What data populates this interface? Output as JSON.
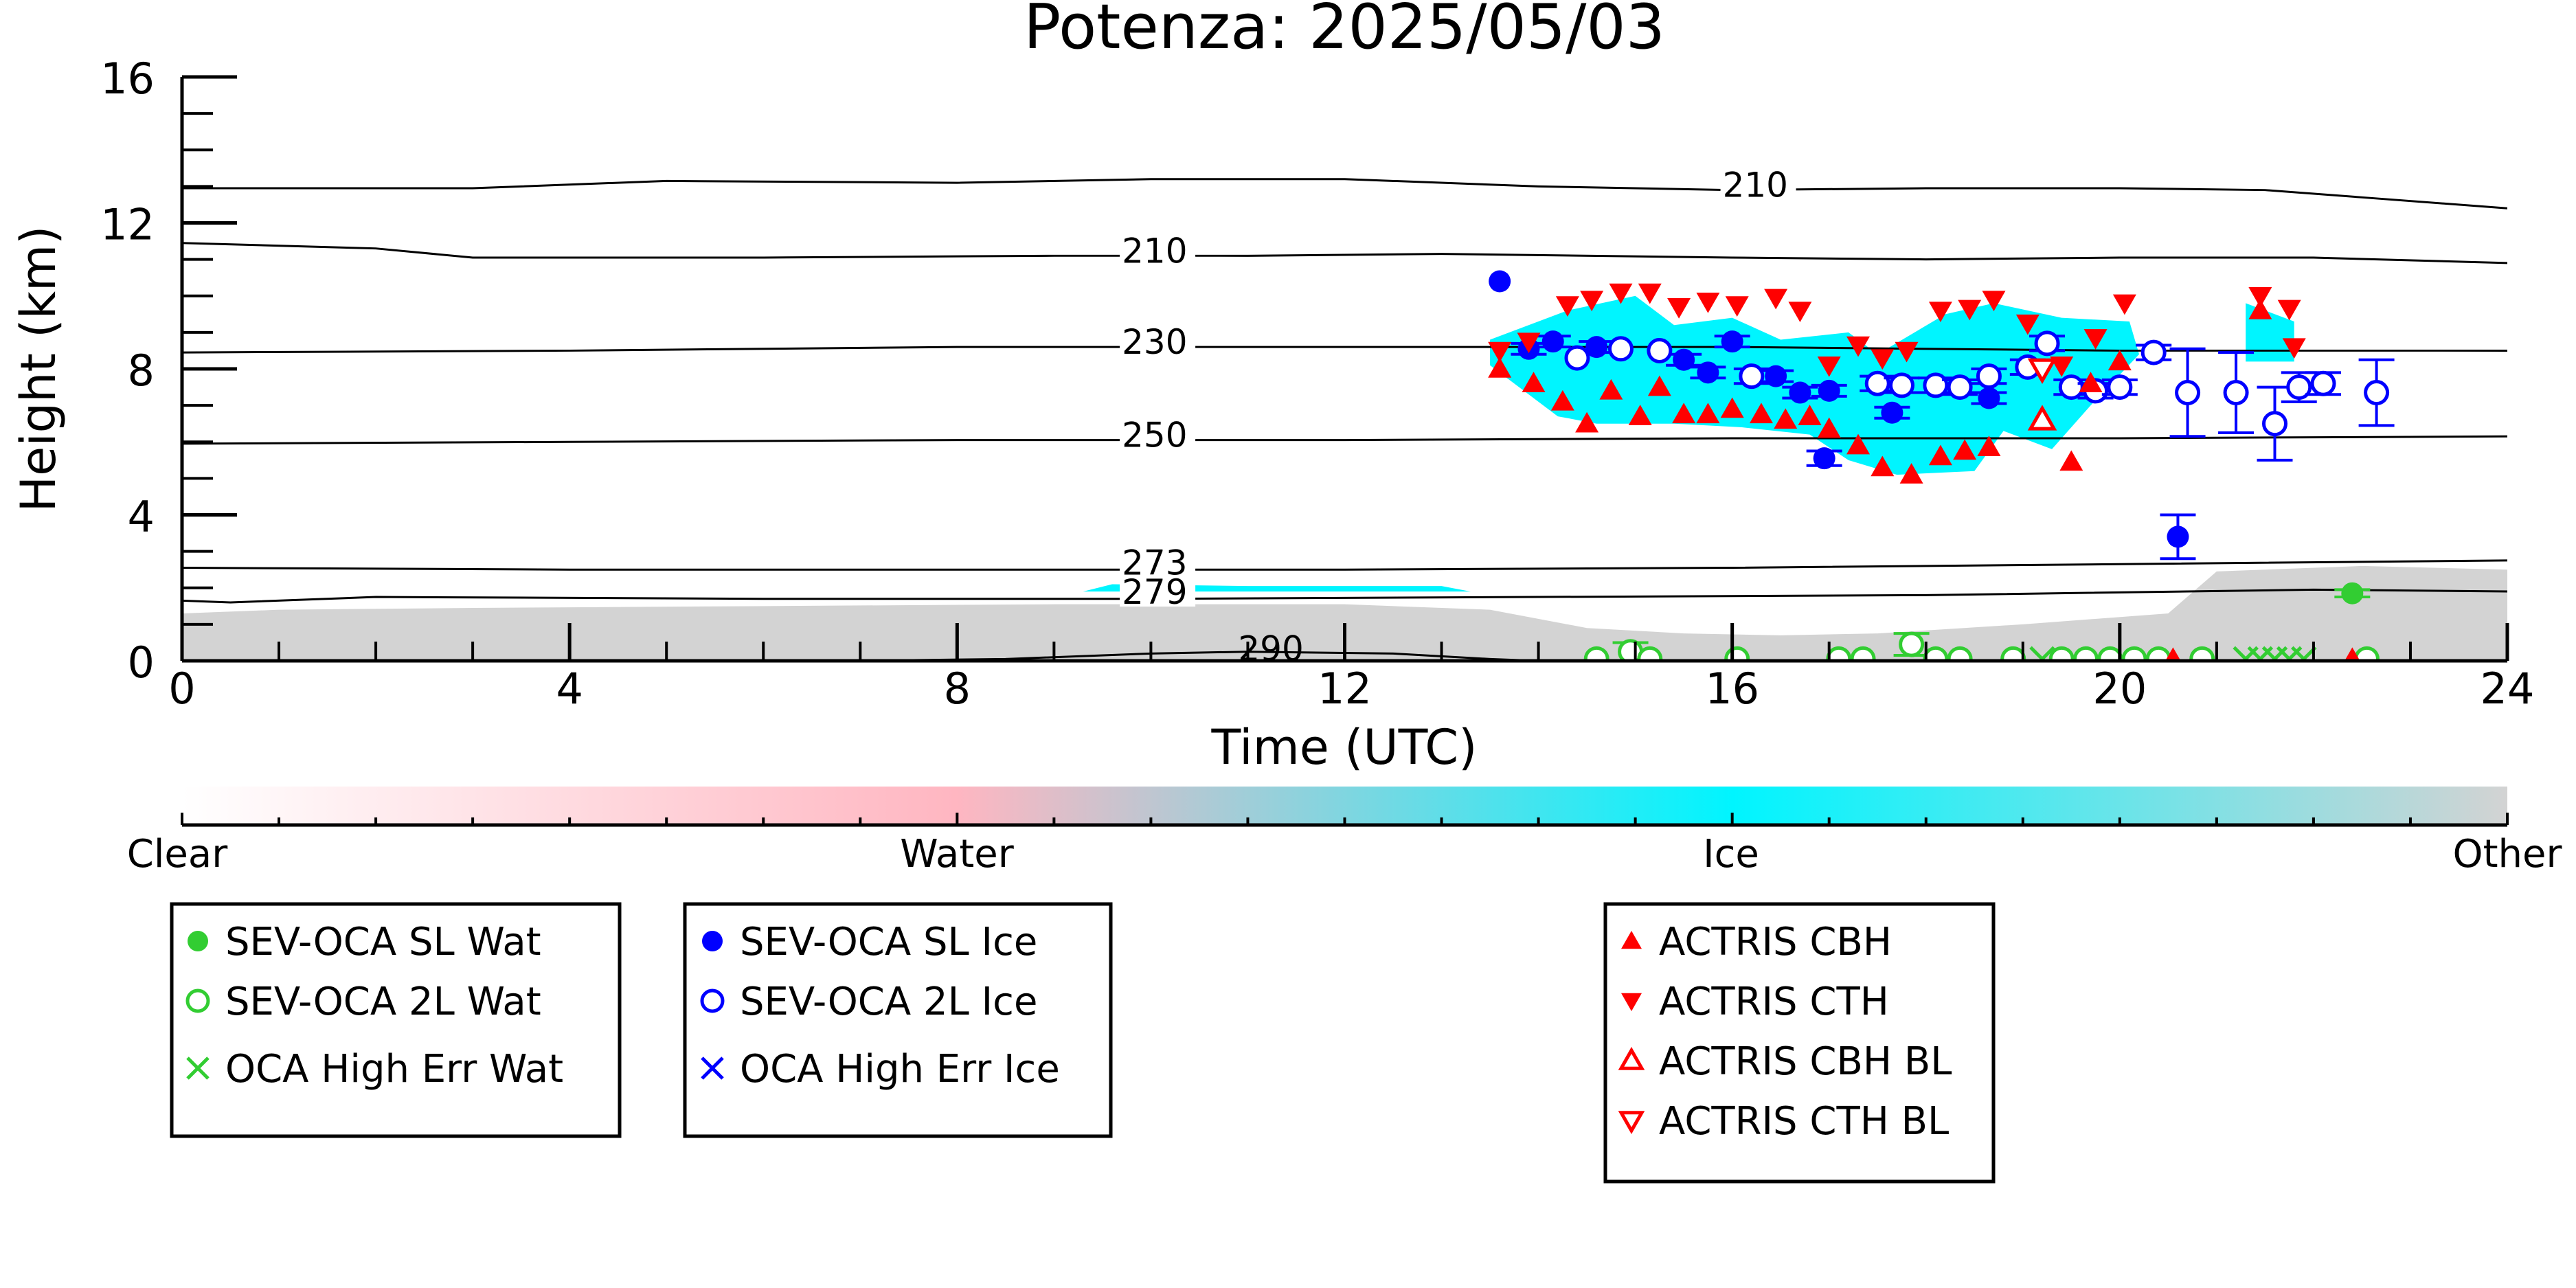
{
  "chart_data": {
    "type": "scatter",
    "title": "Potenza: 2025/05/03",
    "xlabel": "Time (UTC)",
    "ylabel": "Height (km)",
    "xlim": [
      0,
      24
    ],
    "ylim": [
      0,
      16
    ],
    "xticks": [
      0,
      4,
      8,
      12,
      16,
      20,
      24
    ],
    "yticks": [
      0,
      4,
      8,
      12,
      16
    ],
    "grid": false,
    "colorbar": {
      "labels": [
        "Clear",
        "Water",
        "Ice",
        "Other"
      ],
      "colors": [
        "#ffffff",
        "#ffb6c1",
        "#00f5ff",
        "#d3d3d3"
      ]
    },
    "contours": [
      {
        "label": "210",
        "label_at": [
          15.9,
          12.9
        ],
        "points": [
          [
            0,
            12.95
          ],
          [
            3,
            12.95
          ],
          [
            5,
            13.15
          ],
          [
            8,
            13.1
          ],
          [
            10,
            13.2
          ],
          [
            12,
            13.2
          ],
          [
            14,
            13.0
          ],
          [
            16,
            12.9
          ],
          [
            18,
            12.95
          ],
          [
            20,
            12.95
          ],
          [
            21.5,
            12.9
          ],
          [
            22.5,
            12.7
          ],
          [
            24,
            12.4
          ]
        ]
      },
      {
        "label": "210",
        "label_at": [
          9.7,
          11.1
        ],
        "points": [
          [
            0,
            11.45
          ],
          [
            2,
            11.3
          ],
          [
            3,
            11.05
          ],
          [
            6,
            11.05
          ],
          [
            9,
            11.1
          ],
          [
            11,
            11.1
          ],
          [
            13,
            11.15
          ],
          [
            16,
            11.05
          ],
          [
            18,
            11.0
          ],
          [
            20,
            11.05
          ],
          [
            22,
            11.05
          ],
          [
            24,
            10.9
          ]
        ]
      },
      {
        "label": "230",
        "label_at": [
          9.7,
          8.6
        ],
        "points": [
          [
            0,
            8.45
          ],
          [
            4,
            8.5
          ],
          [
            8,
            8.6
          ],
          [
            12,
            8.6
          ],
          [
            16,
            8.6
          ],
          [
            20,
            8.5
          ],
          [
            24,
            8.5
          ]
        ]
      },
      {
        "label": "250",
        "label_at": [
          9.7,
          6.05
        ],
        "points": [
          [
            0,
            5.95
          ],
          [
            4,
            6.0
          ],
          [
            8,
            6.05
          ],
          [
            12,
            6.05
          ],
          [
            16,
            6.1
          ],
          [
            20,
            6.1
          ],
          [
            24,
            6.15
          ]
        ]
      },
      {
        "label": "273",
        "label_at": [
          9.7,
          2.55
        ],
        "points": [
          [
            0,
            2.55
          ],
          [
            4,
            2.5
          ],
          [
            8,
            2.5
          ],
          [
            12,
            2.5
          ],
          [
            16,
            2.55
          ],
          [
            20,
            2.65
          ],
          [
            24,
            2.75
          ]
        ]
      },
      {
        "label": "279",
        "label_at": [
          9.7,
          1.75
        ],
        "points": [
          [
            0,
            1.65
          ],
          [
            0.5,
            1.6
          ],
          [
            2,
            1.75
          ],
          [
            6,
            1.7
          ],
          [
            10,
            1.7
          ],
          [
            14,
            1.75
          ],
          [
            18,
            1.8
          ],
          [
            22,
            1.95
          ],
          [
            24,
            1.9
          ]
        ]
      },
      {
        "label": "290",
        "label_at": [
          10.9,
          0.2
        ],
        "points": [
          [
            7,
            0.0
          ],
          [
            8.5,
            0.05
          ],
          [
            10,
            0.2
          ],
          [
            11,
            0.25
          ],
          [
            12.5,
            0.2
          ],
          [
            13.5,
            0.05
          ],
          [
            14,
            0.0
          ]
        ]
      }
    ],
    "class_regions": [
      {
        "class": "Other",
        "color": "#d3d3d3",
        "points": [
          [
            0,
            0
          ],
          [
            0,
            1.3
          ],
          [
            1,
            1.4
          ],
          [
            3,
            1.45
          ],
          [
            6,
            1.5
          ],
          [
            9,
            1.55
          ],
          [
            12,
            1.55
          ],
          [
            13.5,
            1.4
          ],
          [
            14.5,
            0.9
          ],
          [
            15.5,
            0.75
          ],
          [
            16.5,
            0.7
          ],
          [
            17.5,
            0.75
          ],
          [
            19,
            1.0
          ],
          [
            20.5,
            1.3
          ],
          [
            21,
            2.45
          ],
          [
            22.5,
            2.6
          ],
          [
            24,
            2.5
          ],
          [
            24,
            0
          ]
        ]
      },
      {
        "class": "Ice",
        "color": "#00f5ff",
        "points": [
          [
            9.3,
            1.9
          ],
          [
            9.6,
            2.1
          ],
          [
            11,
            2.05
          ],
          [
            13,
            2.05
          ],
          [
            13.3,
            1.9
          ]
        ]
      },
      {
        "class": "Ice",
        "color": "#00f5ff",
        "points": [
          [
            13.5,
            8.8
          ],
          [
            14.3,
            9.6
          ],
          [
            15,
            10.0
          ],
          [
            15.4,
            9.2
          ],
          [
            16,
            9.4
          ],
          [
            16.5,
            8.8
          ],
          [
            17.2,
            9.0
          ],
          [
            17.5,
            8.4
          ],
          [
            18.2,
            9.5
          ],
          [
            18.7,
            9.8
          ],
          [
            19.4,
            9.4
          ],
          [
            20.1,
            9.3
          ],
          [
            20.2,
            8.4
          ],
          [
            19.7,
            7.0
          ],
          [
            19.3,
            5.8
          ],
          [
            18.8,
            6.3
          ],
          [
            18.5,
            5.2
          ],
          [
            17.7,
            5.1
          ],
          [
            17.2,
            5.5
          ],
          [
            16.8,
            6.2
          ],
          [
            16.1,
            6.4
          ],
          [
            15.4,
            6.5
          ],
          [
            14.6,
            6.5
          ],
          [
            14.2,
            6.7
          ],
          [
            13.8,
            7.5
          ],
          [
            13.5,
            8.1
          ]
        ]
      },
      {
        "class": "Ice",
        "color": "#00f5ff",
        "points": [
          [
            21.3,
            9.8
          ],
          [
            21.8,
            9.3
          ],
          [
            21.8,
            8.2
          ],
          [
            21.3,
            8.2
          ]
        ]
      }
    ],
    "series": [
      {
        "name": "SEV-OCA SL Wat",
        "marker": "filled-circle",
        "color": "#32cd32",
        "points": [
          [
            22.4,
            1.85,
            0.1
          ]
        ]
      },
      {
        "name": "SEV-OCA 2L Wat",
        "marker": "open-circle",
        "color": "#32cd32",
        "points": [
          [
            14.6,
            0.05,
            0
          ],
          [
            14.95,
            0.25,
            0.25
          ],
          [
            15.15,
            0.05,
            0
          ],
          [
            16.05,
            0.05,
            0
          ],
          [
            17.1,
            0.05,
            0
          ],
          [
            17.35,
            0.05,
            0
          ],
          [
            17.85,
            0.45,
            0.3
          ],
          [
            18.1,
            0.05,
            0
          ],
          [
            18.35,
            0.05,
            0
          ],
          [
            18.9,
            0.05,
            0
          ],
          [
            19.4,
            0.05,
            0
          ],
          [
            19.65,
            0.05,
            0
          ],
          [
            19.9,
            0.05,
            0
          ],
          [
            20.15,
            0.05,
            0
          ],
          [
            20.4,
            0.05,
            0
          ],
          [
            20.85,
            0.05,
            0
          ],
          [
            22.55,
            0.05,
            0
          ]
        ]
      },
      {
        "name": "OCA High Err Wat",
        "marker": "x",
        "color": "#32cd32",
        "points": [
          [
            19.2,
            0.05
          ],
          [
            21.3,
            0.05
          ],
          [
            21.45,
            0.05
          ],
          [
            21.6,
            0.05
          ],
          [
            21.75,
            0.05
          ],
          [
            21.9,
            0.05
          ]
        ]
      },
      {
        "name": "SEV-OCA SL Ice",
        "marker": "filled-circle",
        "color": "#0000ff",
        "points": [
          [
            13.6,
            10.4,
            0
          ],
          [
            13.9,
            8.55,
            0.15
          ],
          [
            14.15,
            8.75,
            0.15
          ],
          [
            14.6,
            8.6,
            0.15
          ],
          [
            15.5,
            8.25,
            0.15
          ],
          [
            15.75,
            7.9,
            0.15
          ],
          [
            16,
            8.75,
            0.15
          ],
          [
            16.45,
            7.8,
            0.15
          ],
          [
            16.7,
            7.35,
            0.15
          ],
          [
            16.95,
            5.55,
            0.2
          ],
          [
            17.0,
            7.4,
            0.15
          ],
          [
            17.65,
            6.8,
            0.15
          ],
          [
            18.65,
            7.2,
            0.15
          ],
          [
            20.6,
            3.4,
            0.6
          ]
        ]
      },
      {
        "name": "SEV-OCA 2L Ice",
        "marker": "open-circle",
        "color": "#0000ff",
        "points": [
          [
            14.4,
            8.3,
            0
          ],
          [
            14.85,
            8.55,
            0
          ],
          [
            15.25,
            8.5,
            0
          ],
          [
            16.2,
            7.8,
            0.2
          ],
          [
            17.5,
            7.6,
            0.2
          ],
          [
            17.75,
            7.55,
            0.2
          ],
          [
            18.1,
            7.55,
            0.2
          ],
          [
            18.35,
            7.5,
            0.2
          ],
          [
            18.65,
            7.8,
            0.2
          ],
          [
            19.05,
            8.05,
            0.2
          ],
          [
            19.25,
            8.7,
            0.2
          ],
          [
            19.5,
            7.5,
            0.2
          ],
          [
            19.75,
            7.4,
            0.2
          ],
          [
            20.0,
            7.5,
            0.2
          ],
          [
            20.35,
            8.45,
            0.2
          ],
          [
            20.7,
            7.35,
            1.2
          ],
          [
            21.2,
            7.35,
            1.1
          ],
          [
            21.6,
            6.5,
            1.0
          ],
          [
            21.85,
            7.5,
            0.4
          ],
          [
            22.1,
            7.6,
            0.3
          ],
          [
            22.65,
            7.35,
            0.9
          ]
        ]
      },
      {
        "name": "OCA High Err Ice",
        "marker": "x",
        "color": "#0000ff",
        "points": []
      },
      {
        "name": "ACTRIS CBH",
        "marker": "triangle-up",
        "color": "#ff0000",
        "points": [
          [
            13.6,
            8.0
          ],
          [
            13.95,
            7.6
          ],
          [
            14.25,
            7.1
          ],
          [
            14.5,
            6.5
          ],
          [
            14.75,
            7.4
          ],
          [
            15.05,
            6.7
          ],
          [
            15.25,
            7.5
          ],
          [
            15.5,
            6.75
          ],
          [
            15.75,
            6.75
          ],
          [
            16.0,
            6.9
          ],
          [
            16.3,
            6.75
          ],
          [
            16.55,
            6.6
          ],
          [
            16.8,
            6.7
          ],
          [
            17.0,
            6.35
          ],
          [
            17.3,
            5.9
          ],
          [
            17.55,
            5.3
          ],
          [
            17.85,
            5.1
          ],
          [
            18.15,
            5.6
          ],
          [
            18.4,
            5.75
          ],
          [
            18.65,
            5.85
          ],
          [
            19.5,
            5.45
          ],
          [
            19.7,
            7.6
          ],
          [
            20.0,
            8.2
          ],
          [
            20.55,
            0.05
          ],
          [
            21.45,
            9.6
          ],
          [
            22.4,
            0.05
          ]
        ]
      },
      {
        "name": "ACTRIS CTH",
        "marker": "triangle-down",
        "color": "#ff0000",
        "points": [
          [
            13.6,
            8.5
          ],
          [
            13.9,
            8.75
          ],
          [
            14.3,
            9.75
          ],
          [
            14.55,
            9.9
          ],
          [
            14.85,
            10.1
          ],
          [
            15.15,
            10.1
          ],
          [
            15.45,
            9.7
          ],
          [
            15.75,
            9.85
          ],
          [
            16.05,
            9.75
          ],
          [
            16.45,
            9.95
          ],
          [
            16.7,
            9.6
          ],
          [
            17.0,
            8.1
          ],
          [
            17.3,
            8.65
          ],
          [
            17.55,
            8.3
          ],
          [
            17.8,
            8.5
          ],
          [
            18.15,
            9.6
          ],
          [
            18.45,
            9.65
          ],
          [
            18.7,
            9.9
          ],
          [
            19.05,
            9.25
          ],
          [
            19.4,
            8.1
          ],
          [
            19.75,
            8.85
          ],
          [
            20.05,
            9.8
          ],
          [
            21.45,
            10.0
          ],
          [
            21.75,
            9.65
          ],
          [
            21.8,
            8.6
          ]
        ]
      },
      {
        "name": "ACTRIS CBH BL",
        "marker": "open-triangle-up",
        "color": "#ff0000",
        "points": [
          [
            19.2,
            6.6
          ]
        ]
      },
      {
        "name": "ACTRIS CTH BL",
        "marker": "open-triangle-down",
        "color": "#ff0000",
        "points": [
          [
            19.2,
            8.0
          ]
        ]
      }
    ],
    "legends": [
      {
        "placement": "bottom-left",
        "entries": [
          "SEV-OCA SL Wat",
          "SEV-OCA 2L Wat",
          "OCA High Err Wat"
        ]
      },
      {
        "placement": "bottom-center-left",
        "entries": [
          "SEV-OCA SL Ice",
          "SEV-OCA 2L Ice",
          "OCA High Err Ice"
        ]
      },
      {
        "placement": "bottom-right",
        "entries": [
          "ACTRIS CBH",
          "ACTRIS CTH",
          "ACTRIS CBH BL",
          "ACTRIS CTH BL"
        ]
      }
    ]
  }
}
